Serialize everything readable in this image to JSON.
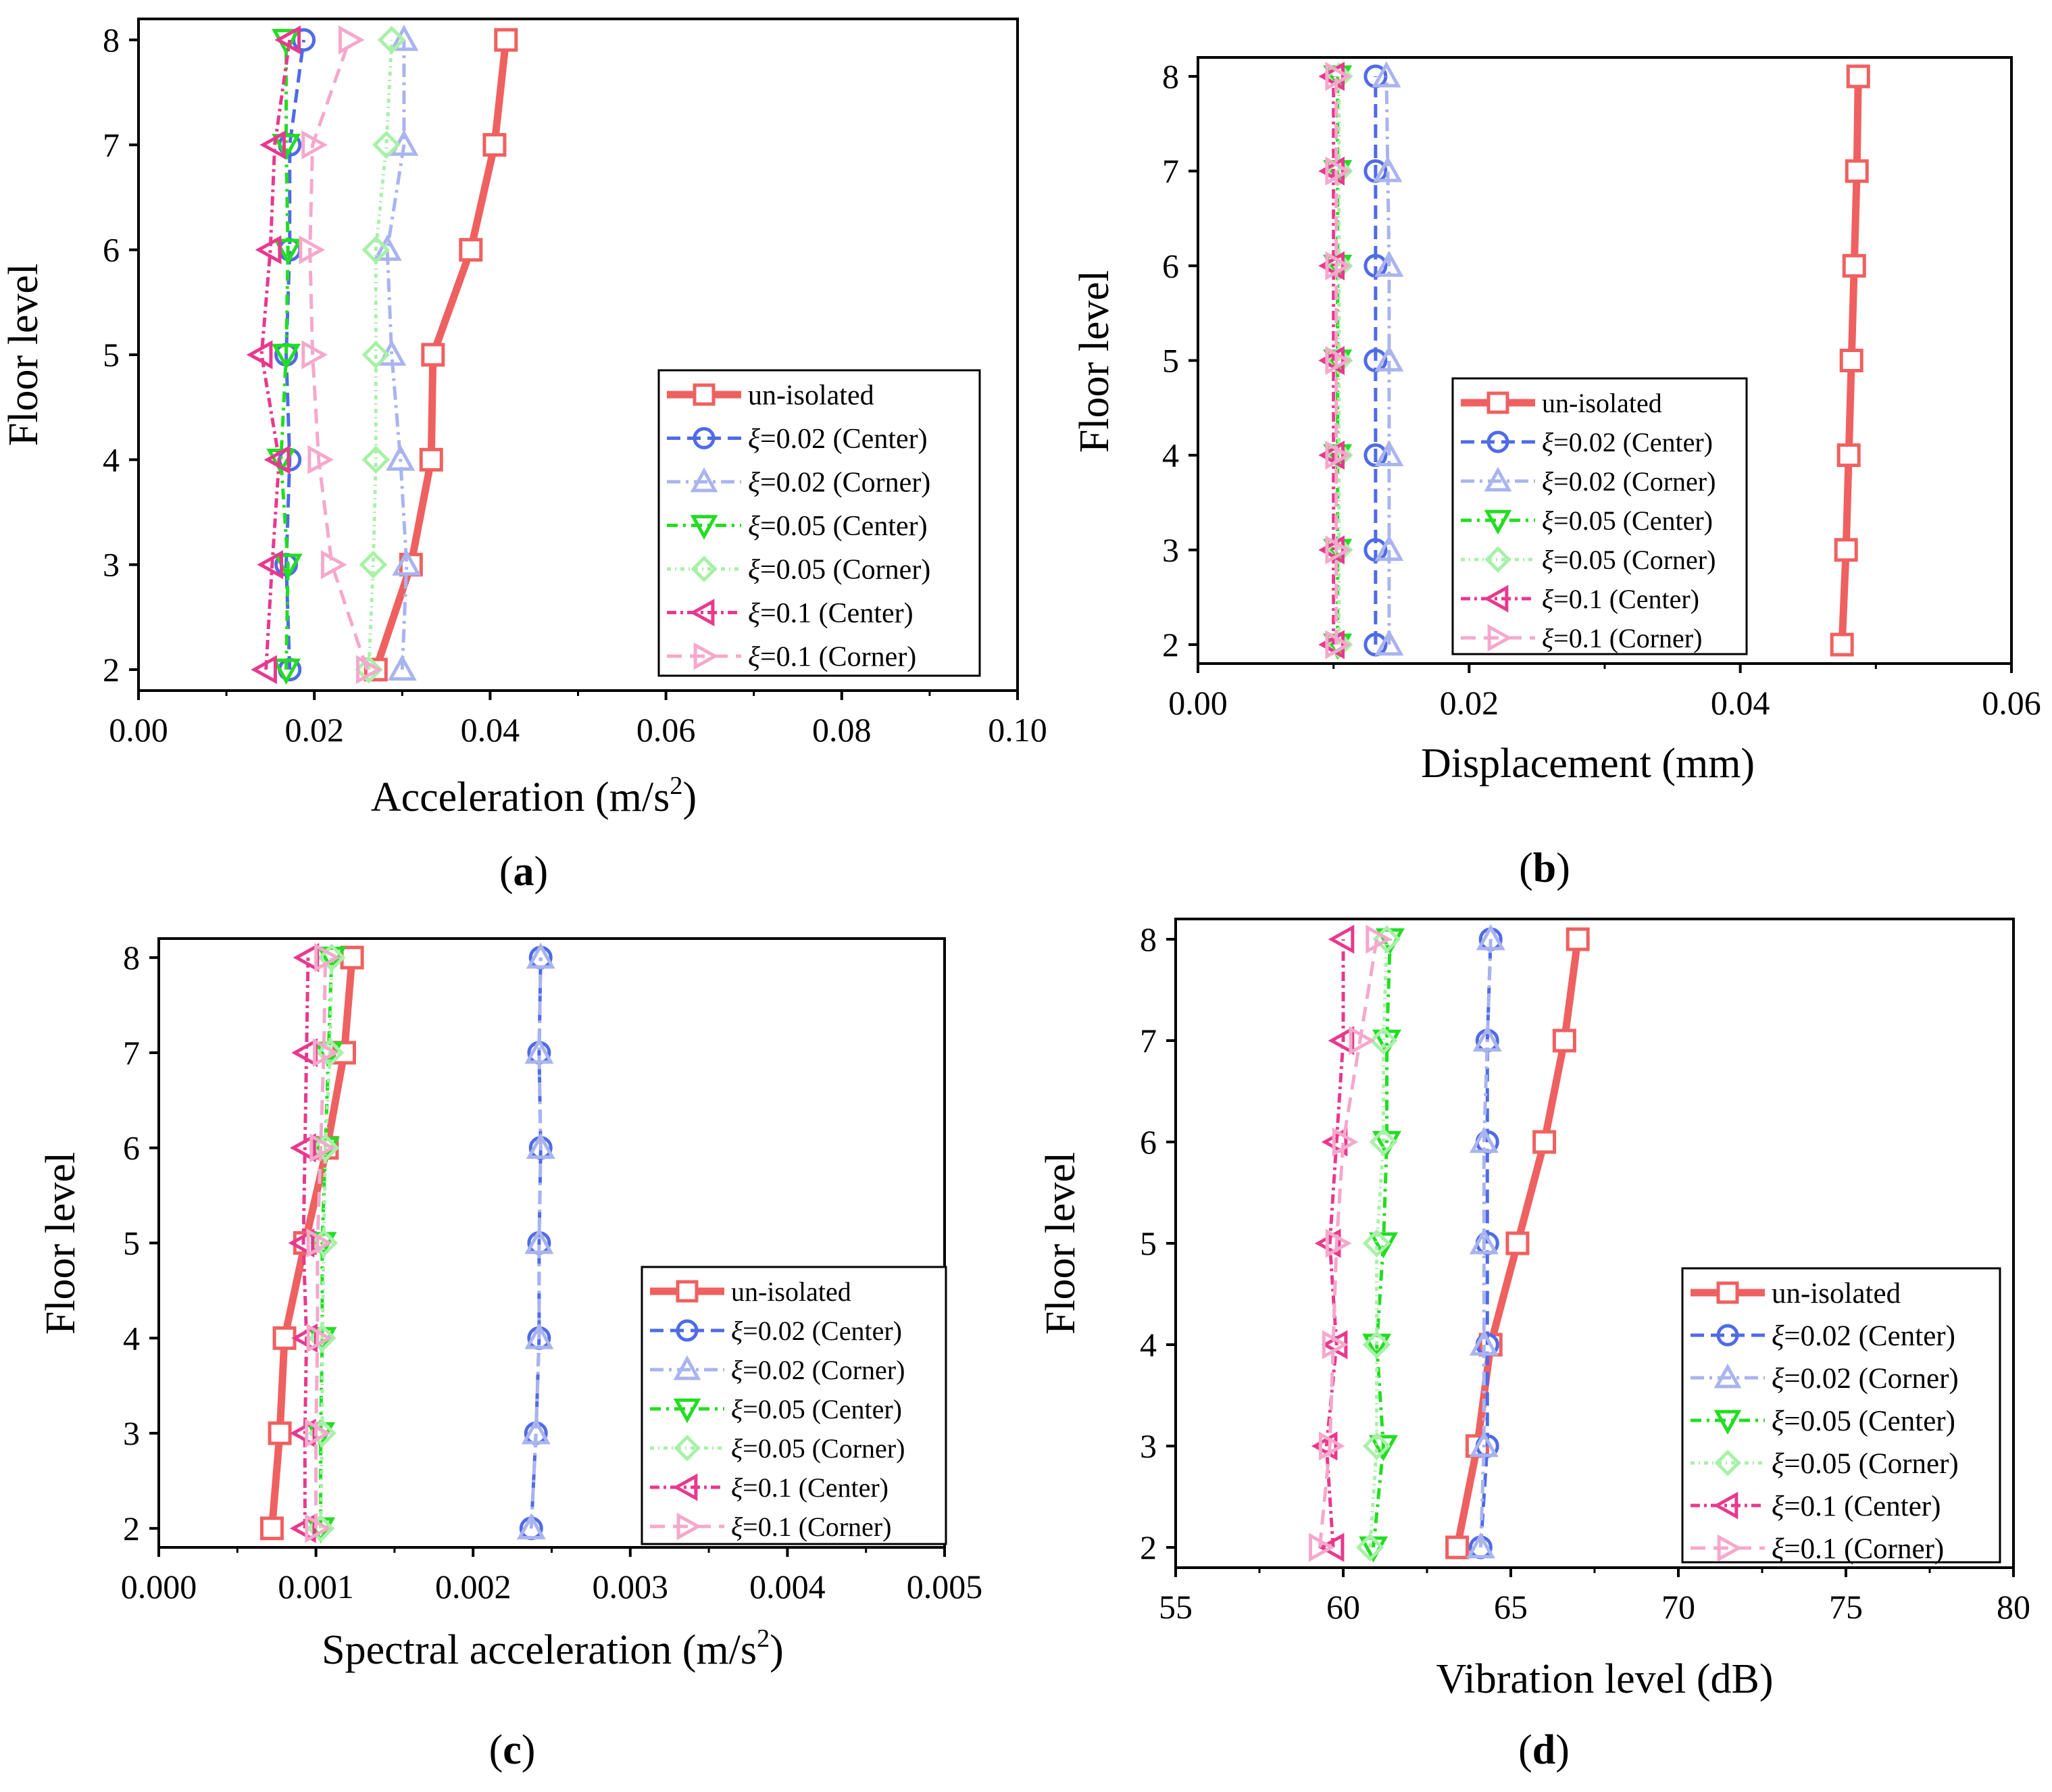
{
  "figure": {
    "legend_labels": [
      "un-isolated",
      "ξ=0.02 (Center)",
      "ξ=0.02 (Corner)",
      "ξ=0.05 (Center)",
      "ξ=0.05 (Corner)",
      "ξ=0.1 (Center)",
      "ξ=0.1 (Corner)"
    ],
    "colors": {
      "un-isolated": "#ef6060",
      "xi002_center": "#4f6be6",
      "xi002_corner": "#a9b4ef",
      "xi005_center": "#22dd22",
      "xi005_corner": "#a8f0a8",
      "xi01_center": "#e8398e",
      "xi01_corner": "#f5a8cc"
    }
  },
  "chart_data": [
    {
      "panel": "(a)",
      "type": "line",
      "xlabel": "Acceleration (m/s²)",
      "ylabel": "Floor level",
      "xlim": [
        0,
        0.1
      ],
      "ylim": [
        1.8,
        8.2
      ],
      "xticks": [
        "0.00",
        "0.02",
        "0.04",
        "0.06",
        "0.08",
        "0.10"
      ],
      "yticks": [
        "2",
        "3",
        "4",
        "5",
        "6",
        "7",
        "8"
      ],
      "legend_position": "bottom-right",
      "floors": [
        2,
        3,
        4,
        5,
        6,
        7,
        8
      ],
      "series": [
        {
          "name": "un-isolated",
          "values": [
            0.027,
            0.031,
            0.0333,
            0.0335,
            0.0378,
            0.0405,
            0.0418
          ]
        },
        {
          "name": "ξ=0.02 (Center)",
          "values": [
            0.0172,
            0.0168,
            0.0172,
            0.0168,
            0.0172,
            0.0172,
            0.0188
          ]
        },
        {
          "name": "ξ=0.02 (Corner)",
          "values": [
            0.03,
            0.0305,
            0.0298,
            0.0288,
            0.0283,
            0.0302,
            0.0302
          ]
        },
        {
          "name": "ξ=0.05 (Center)",
          "values": [
            0.0168,
            0.017,
            0.0162,
            0.0168,
            0.017,
            0.0168,
            0.0168
          ]
        },
        {
          "name": "ξ=0.05 (Corner)",
          "values": [
            0.0262,
            0.0267,
            0.027,
            0.027,
            0.027,
            0.0282,
            0.0288
          ]
        },
        {
          "name": "ξ=0.1 (Center)",
          "values": [
            0.0145,
            0.0152,
            0.016,
            0.014,
            0.015,
            0.0155,
            0.0172
          ]
        },
        {
          "name": "ξ=0.1 (Corner)",
          "values": [
            0.026,
            0.022,
            0.0205,
            0.0198,
            0.0195,
            0.0198,
            0.024
          ]
        }
      ]
    },
    {
      "panel": "(b)",
      "type": "line",
      "xlabel": "Displacement (mm)",
      "ylabel": "Floor level",
      "xlim": [
        0,
        0.06
      ],
      "ylim": [
        1.8,
        8.2
      ],
      "xticks": [
        "0.00",
        "0.02",
        "0.04",
        "0.06"
      ],
      "yticks": [
        "2",
        "3",
        "4",
        "5",
        "6",
        "7",
        "8"
      ],
      "legend_position": "bottom-right",
      "floors": [
        2,
        3,
        4,
        5,
        6,
        7,
        8
      ],
      "series": [
        {
          "name": "un-isolated",
          "values": [
            0.0475,
            0.0478,
            0.048,
            0.0482,
            0.0484,
            0.0486,
            0.0487
          ]
        },
        {
          "name": "ξ=0.02 (Center)",
          "values": [
            0.0131,
            0.0131,
            0.0131,
            0.0131,
            0.0131,
            0.0131,
            0.0131
          ]
        },
        {
          "name": "ξ=0.02 (Corner)",
          "values": [
            0.0141,
            0.0141,
            0.0141,
            0.0141,
            0.0141,
            0.014,
            0.0139
          ]
        },
        {
          "name": "ξ=0.05 (Center)",
          "values": [
            0.0103,
            0.0103,
            0.0103,
            0.0103,
            0.0103,
            0.0103,
            0.0103
          ]
        },
        {
          "name": "ξ=0.05 (Corner)",
          "values": [
            0.0104,
            0.0104,
            0.0104,
            0.0104,
            0.0104,
            0.0104,
            0.0104
          ]
        },
        {
          "name": "ξ=0.1 (Center)",
          "values": [
            0.01,
            0.01,
            0.01,
            0.01,
            0.01,
            0.01,
            0.01
          ]
        },
        {
          "name": "ξ=0.1 (Corner)",
          "values": [
            0.0102,
            0.0102,
            0.0102,
            0.0102,
            0.0102,
            0.0102,
            0.0102
          ]
        }
      ]
    },
    {
      "panel": "(c)",
      "type": "line",
      "xlabel": "Spectral acceleration (m/s²)",
      "ylabel": "Floor level",
      "xlim": [
        0,
        0.005
      ],
      "ylim": [
        1.8,
        8.2
      ],
      "xticks": [
        "0.000",
        "0.001",
        "0.002",
        "0.003",
        "0.004",
        "0.005"
      ],
      "yticks": [
        "2",
        "3",
        "4",
        "5",
        "6",
        "7",
        "8"
      ],
      "legend_position": "bottom-right",
      "floors": [
        2,
        3,
        4,
        5,
        6,
        7,
        8
      ],
      "series": [
        {
          "name": "un-isolated",
          "values": [
            0.00072,
            0.00077,
            0.0008,
            0.00093,
            0.00107,
            0.00118,
            0.00123
          ]
        },
        {
          "name": "ξ=0.02 (Center)",
          "values": [
            0.00237,
            0.0024,
            0.00242,
            0.00242,
            0.00243,
            0.00242,
            0.00243
          ]
        },
        {
          "name": "ξ=0.02 (Corner)",
          "values": [
            0.00237,
            0.0024,
            0.00242,
            0.00242,
            0.00243,
            0.00242,
            0.00243
          ]
        },
        {
          "name": "ξ=0.05 (Center)",
          "values": [
            0.00103,
            0.00103,
            0.00104,
            0.00104,
            0.00106,
            0.00108,
            0.0011
          ]
        },
        {
          "name": "ξ=0.05 (Corner)",
          "values": [
            0.00103,
            0.00104,
            0.00104,
            0.00105,
            0.00106,
            0.00109,
            0.0011
          ]
        },
        {
          "name": "ξ=0.1 (Center)",
          "values": [
            0.00093,
            0.00093,
            0.00094,
            0.00092,
            0.00093,
            0.00094,
            0.00095
          ]
        },
        {
          "name": "ξ=0.1 (Corner)",
          "values": [
            0.001,
            0.001,
            0.00101,
            0.00101,
            0.00103,
            0.00105,
            0.00106
          ]
        }
      ]
    },
    {
      "panel": "(d)",
      "type": "line",
      "xlabel": "Vibration level (dB)",
      "ylabel": "Floor level",
      "xlim": [
        55,
        80
      ],
      "ylim": [
        1.8,
        8.2
      ],
      "xticks": [
        "55",
        "60",
        "65",
        "70",
        "75",
        "80"
      ],
      "yticks": [
        "2",
        "3",
        "4",
        "5",
        "6",
        "7",
        "8"
      ],
      "legend_position": "bottom-right",
      "floors": [
        2,
        3,
        4,
        5,
        6,
        7,
        8
      ],
      "series": [
        {
          "name": "un-isolated",
          "values": [
            63.4,
            64.0,
            64.4,
            65.2,
            66.0,
            66.6,
            67.0
          ]
        },
        {
          "name": "ξ=0.02 (Center)",
          "values": [
            64.1,
            64.3,
            64.3,
            64.3,
            64.3,
            64.3,
            64.4
          ]
        },
        {
          "name": "ξ=0.02 (Corner)",
          "values": [
            64.1,
            64.2,
            64.2,
            64.2,
            64.2,
            64.3,
            64.4
          ]
        },
        {
          "name": "ξ=0.05 (Center)",
          "values": [
            60.9,
            61.2,
            61.0,
            61.2,
            61.3,
            61.3,
            61.4
          ]
        },
        {
          "name": "ξ=0.05 (Corner)",
          "values": [
            60.8,
            61.0,
            61.0,
            61.0,
            61.2,
            61.2,
            61.3
          ]
        },
        {
          "name": "ξ=0.1 (Center)",
          "values": [
            59.7,
            59.5,
            59.8,
            59.6,
            59.8,
            60.0,
            60.0
          ]
        },
        {
          "name": "ξ=0.1 (Corner)",
          "values": [
            59.3,
            59.6,
            59.7,
            59.8,
            60.0,
            60.5,
            61.0
          ]
        }
      ]
    }
  ]
}
